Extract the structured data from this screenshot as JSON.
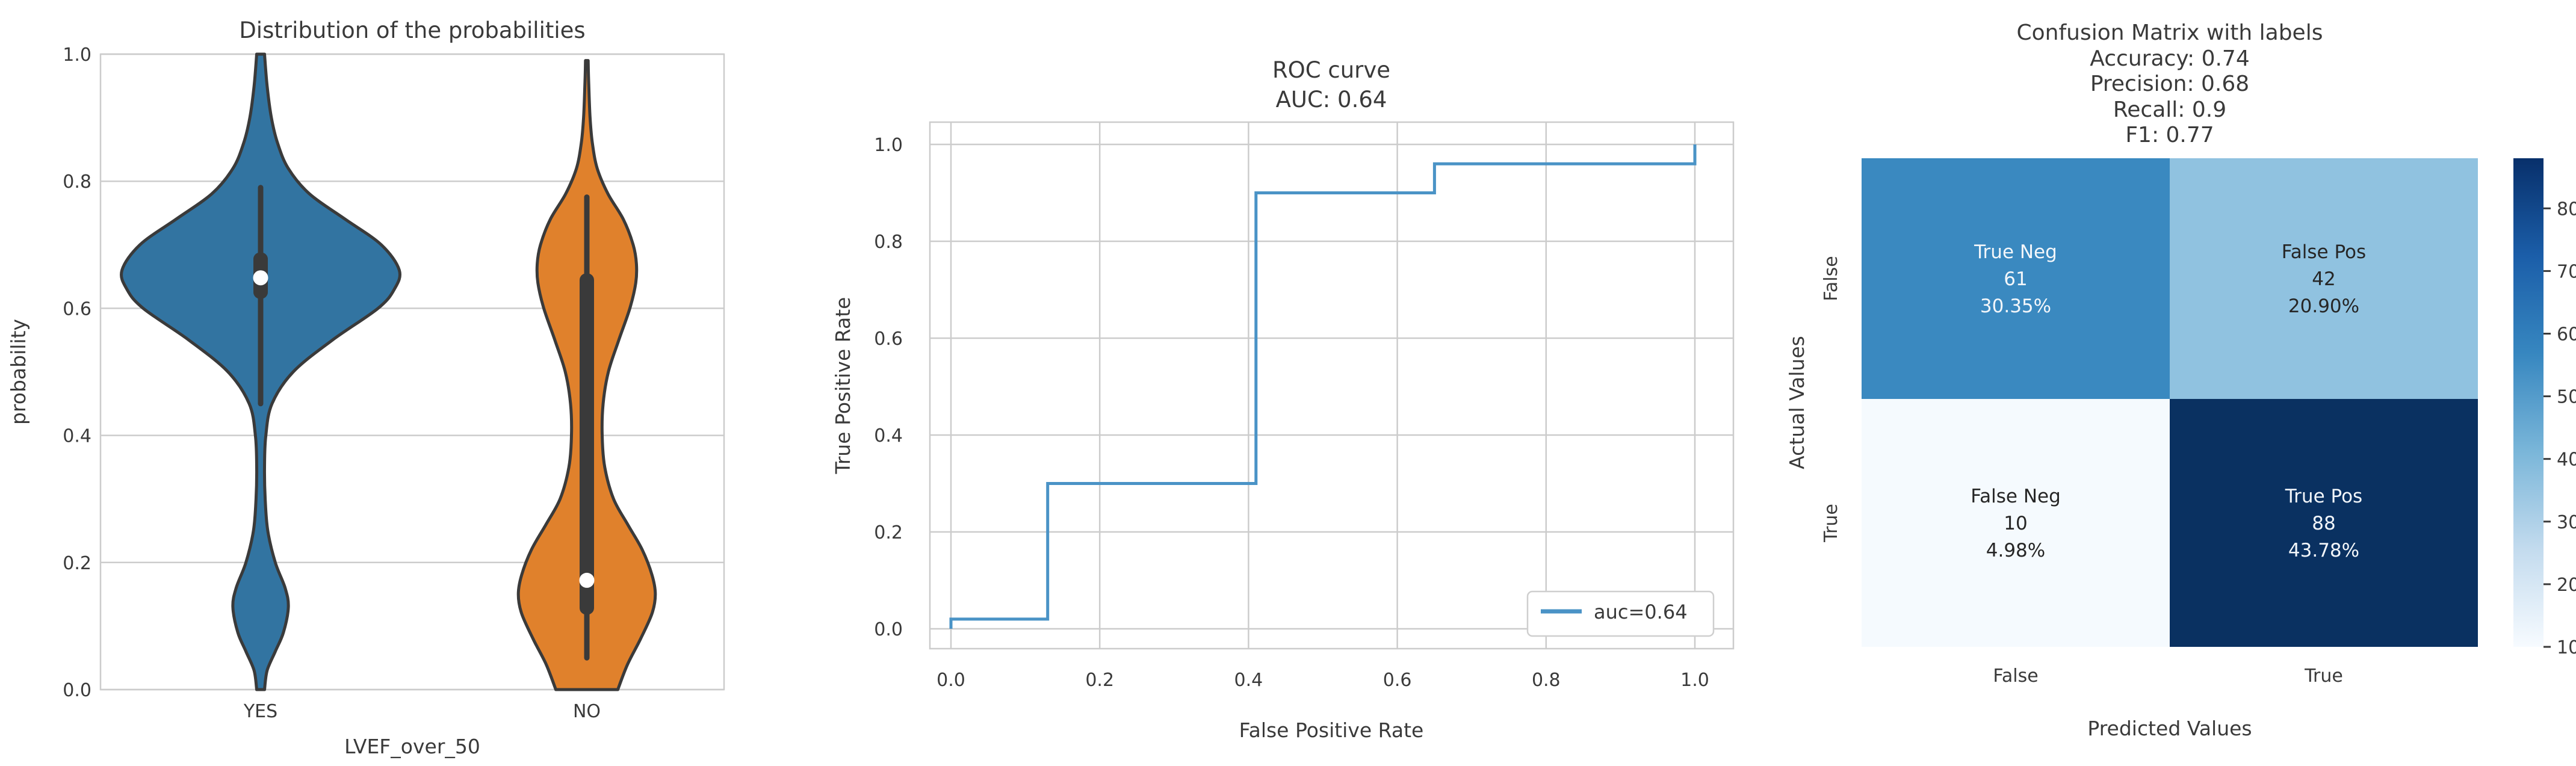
{
  "colors": {
    "background": "#ffffff",
    "grid": "#cccccc",
    "text": "#3a3a3a",
    "violin_outline": "#3a3a3a",
    "roc_line": "#4a93c6",
    "legend_border": "#cfcfcf"
  },
  "chart_data": [
    {
      "id": "violin",
      "type": "violin",
      "title": "Distribution of the probabilities",
      "xlabel": "LVEF_over_50",
      "ylabel": "probability",
      "categories": [
        "YES",
        "NO"
      ],
      "ylim": [
        0.0,
        1.0
      ],
      "yticks": [
        "0.0",
        "0.2",
        "0.4",
        "0.6",
        "0.8",
        "1.0"
      ],
      "grid": "horizontal",
      "violins": [
        {
          "category": "YES",
          "color": "#3274a1",
          "median": 0.648,
          "box": [
            0.615,
            0.688
          ],
          "whisker": [
            0.45,
            0.79
          ],
          "profile": [
            [
              0,
              0.012
            ],
            [
              0.03,
              0.02
            ],
            [
              0.06,
              0.045
            ],
            [
              0.09,
              0.07
            ],
            [
              0.13,
              0.085
            ],
            [
              0.16,
              0.075
            ],
            [
              0.2,
              0.045
            ],
            [
              0.25,
              0.022
            ],
            [
              0.3,
              0.014
            ],
            [
              0.35,
              0.012
            ],
            [
              0.4,
              0.016
            ],
            [
              0.45,
              0.035
            ],
            [
              0.5,
              0.1
            ],
            [
              0.55,
              0.22
            ],
            [
              0.6,
              0.36
            ],
            [
              0.63,
              0.41
            ],
            [
              0.66,
              0.425
            ],
            [
              0.7,
              0.37
            ],
            [
              0.74,
              0.26
            ],
            [
              0.78,
              0.15
            ],
            [
              0.82,
              0.085
            ],
            [
              0.86,
              0.052
            ],
            [
              0.9,
              0.033
            ],
            [
              0.95,
              0.02
            ],
            [
              1,
              0.012
            ]
          ]
        },
        {
          "category": "NO",
          "color": "#e0812c",
          "median": 0.172,
          "box": [
            0.118,
            0.655
          ],
          "whisker": [
            0.05,
            0.775
          ],
          "profile": [
            [
              0,
              0.095
            ],
            [
              0.04,
              0.125
            ],
            [
              0.08,
              0.165
            ],
            [
              0.12,
              0.2
            ],
            [
              0.15,
              0.21
            ],
            [
              0.18,
              0.2
            ],
            [
              0.22,
              0.17
            ],
            [
              0.26,
              0.125
            ],
            [
              0.3,
              0.082
            ],
            [
              0.35,
              0.055
            ],
            [
              0.4,
              0.047
            ],
            [
              0.45,
              0.05
            ],
            [
              0.5,
              0.066
            ],
            [
              0.55,
              0.098
            ],
            [
              0.6,
              0.132
            ],
            [
              0.64,
              0.15
            ],
            [
              0.67,
              0.152
            ],
            [
              0.7,
              0.142
            ],
            [
              0.74,
              0.112
            ],
            [
              0.78,
              0.065
            ],
            [
              0.82,
              0.032
            ],
            [
              0.86,
              0.017
            ],
            [
              0.9,
              0.01
            ],
            [
              0.95,
              0.006
            ],
            [
              0.99,
              0.004
            ]
          ]
        }
      ]
    },
    {
      "id": "roc",
      "type": "line",
      "title": "ROC curve",
      "subtitle": "AUC: 0.64",
      "auc": 0.64,
      "xlabel": "False Positive Rate",
      "ylabel": "True Positive Rate",
      "xticks": [
        "0.0",
        "0.2",
        "0.4",
        "0.6",
        "0.8",
        "1.0"
      ],
      "yticks": [
        "0.0",
        "0.2",
        "0.4",
        "0.6",
        "0.8",
        "1.0"
      ],
      "xlim": [
        -0.03,
        1.05
      ],
      "ylim": [
        -0.04,
        1.05
      ],
      "grid": "both",
      "legend": {
        "label": "auc=0.64",
        "location": "lower right"
      },
      "series": [
        {
          "name": "auc=0.64",
          "color": "#4a93c6",
          "points": [
            [
              0,
              0
            ],
            [
              0,
              0.02
            ],
            [
              0.13,
              0.02
            ],
            [
              0.13,
              0.3
            ],
            [
              0.41,
              0.3
            ],
            [
              0.41,
              0.9
            ],
            [
              0.65,
              0.9
            ],
            [
              0.65,
              0.96
            ],
            [
              1.0,
              0.96
            ],
            [
              1.0,
              1.0
            ]
          ]
        }
      ]
    },
    {
      "id": "confusion_matrix",
      "type": "heatmap",
      "title_lines": [
        "Confusion Matrix with labels",
        "Accuracy: 0.74",
        "Precision: 0.68",
        "Recall: 0.9",
        "F1: 0.77"
      ],
      "metrics": {
        "accuracy": 0.74,
        "precision": 0.68,
        "recall": 0.9,
        "f1": 0.77
      },
      "xlabel": "Predicted Values",
      "ylabel": "Actual Values",
      "x_categories": [
        "False",
        "True"
      ],
      "y_categories": [
        "False",
        "True"
      ],
      "values": [
        [
          61,
          42
        ],
        [
          10,
          88
        ]
      ],
      "cells": [
        {
          "row": 0,
          "col": 0,
          "label": "True Neg",
          "count": "61",
          "percent": "30.35%",
          "color": "#3a89c0",
          "text_color": "#f2f6fa"
        },
        {
          "row": 0,
          "col": 1,
          "label": "False Pos",
          "count": "42",
          "percent": "20.90%",
          "color": "#90c2e0",
          "text_color": "#262626"
        },
        {
          "row": 1,
          "col": 0,
          "label": "False Neg",
          "count": "10",
          "percent": "4.98%",
          "color": "#f5fafe",
          "text_color": "#262626"
        },
        {
          "row": 1,
          "col": 1,
          "label": "True Pos",
          "count": "88",
          "percent": "43.78%",
          "color": "#0a3161",
          "text_color": "#f2f6fa"
        }
      ],
      "colorbar": {
        "vmin": 10,
        "vmax": 88,
        "ticks": [
          "80",
          "70",
          "60",
          "50",
          "40",
          "30",
          "20",
          "10"
        ],
        "tick_values": [
          80,
          70,
          60,
          50,
          40,
          30,
          20,
          10
        ],
        "gradient": [
          "#08306b",
          "#1b5ea9",
          "#3787c0",
          "#7ab6d9",
          "#c3dbee",
          "#f7fbff"
        ]
      }
    }
  ]
}
